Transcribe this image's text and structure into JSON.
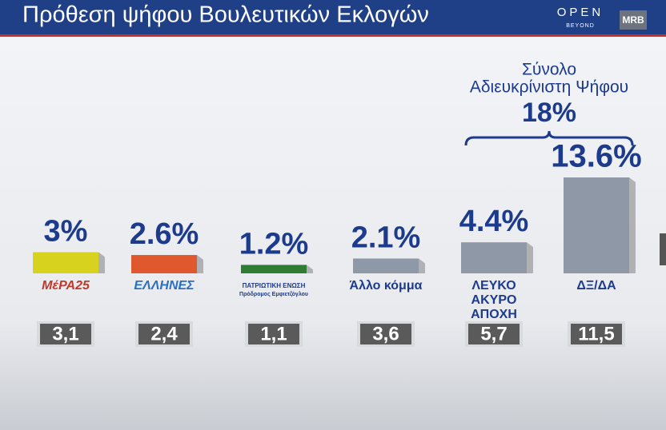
{
  "chart_data": {
    "type": "bar",
    "title": "Πρόθεση ψήφου Βουλευτικών Εκλογών",
    "brand": [
      "OPEN",
      "BEYOND",
      "MRB"
    ],
    "categories": [
      [
        "ΜέΡΑ25"
      ],
      [
        "ΕΛΛΗΝΕΣ"
      ],
      [
        "ΠΑΤΡΙΩΤΙΚΗ ΕΝΩΣΗ",
        "Πρόδρομος Εμφιετζόγλου"
      ],
      [
        "Άλλο κόμμα"
      ],
      [
        "ΛΕΥΚΟ",
        "ΑΚΥΡΟ",
        "ΑΠΟΧΗ"
      ],
      [
        "ΔΞ/ΔΑ"
      ]
    ],
    "series": [
      {
        "values": [
          3,
          2.6,
          1.2,
          2.1,
          4.4,
          13.6
        ],
        "value_labels": [
          "3%",
          "2.6%",
          "1.2%",
          "2.1%",
          "4.4%",
          "13.6%"
        ],
        "colors": [
          "#d6d21e",
          "#e0582e",
          "#2e7d32",
          "#8f98a6",
          "#8f98a6",
          "#8f98a6"
        ]
      },
      {
        "values": [
          3.1,
          2.4,
          1.1,
          3.6,
          5.7,
          11.5
        ],
        "value_labels": [
          "3,1",
          "2,4",
          "1,1",
          "3,6",
          "5,7",
          "11,5"
        ],
        "color": "#5a5a5a"
      }
    ],
    "annotation": {
      "lines": [
        "Σύνολο",
        "Αδιευκρίνιστη Ψήφου"
      ],
      "value": 18,
      "value_label": "18%",
      "categories": [
        4,
        5
      ]
    }
  }
}
